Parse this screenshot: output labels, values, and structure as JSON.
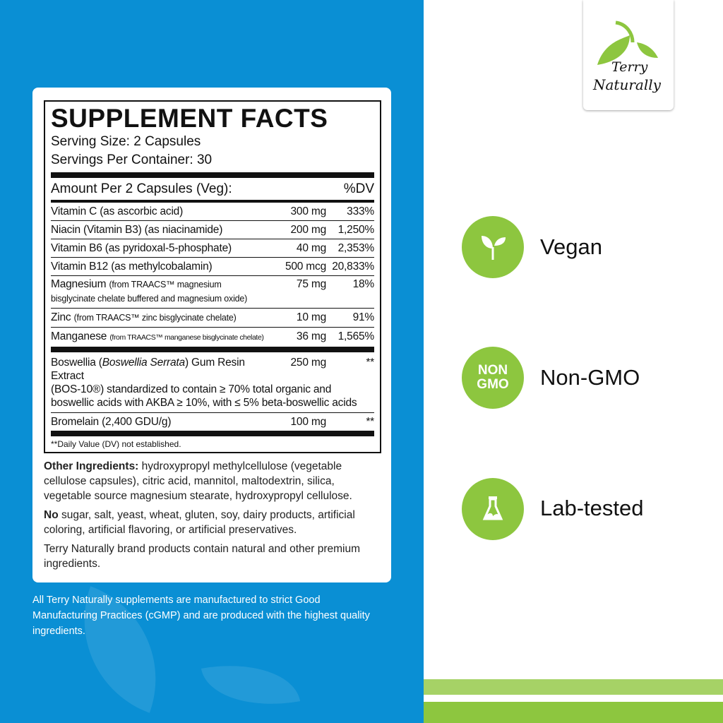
{
  "brand": {
    "name_line1": "Terry",
    "name_line2": "Naturally",
    "color_green": "#8dc63f",
    "color_blue": "#0a8fd4"
  },
  "facts": {
    "title": "SUPPLEMENT FACTS",
    "serving_size": "Serving Size: 2 Capsules",
    "servings_per_container": "Servings Per Container: 30",
    "amount_header": "Amount Per 2 Capsules (Veg):",
    "dv_header": "%DV",
    "rows": [
      {
        "name": "Vitamin C (as ascorbic acid)",
        "amount": "300 mg",
        "dv": "333%"
      },
      {
        "name": "Niacin (Vitamin B3) (as niacinamide)",
        "amount": "200 mg",
        "dv": "1,250%"
      },
      {
        "name": "Vitamin B6 (as pyridoxal-5-phosphate)",
        "amount": "40 mg",
        "dv": "2,353%"
      },
      {
        "name": "Vitamin B12 (as methylcobalamin)",
        "amount": "500 mcg",
        "dv": "20,833%"
      },
      {
        "name": "Magnesium",
        "detail": "(from TRAACS™ magnesium bisglycinate chelate buffered and magnesium oxide)",
        "amount": "75 mg",
        "dv": "18%"
      },
      {
        "name": "Zinc",
        "detail": "(from TRAACS™ zinc bisglycinate chelate)",
        "amount": "10 mg",
        "dv": "91%"
      },
      {
        "name": "Manganese",
        "detail": "(from TRAACS™ manganese bisglycinate chelate)",
        "amount": "36 mg",
        "dv": "1,565%"
      }
    ],
    "boswellia": {
      "name_pre": "Boswellia (",
      "name_italic": "Boswellia Serrata",
      "name_post": ") Gum Resin Extract",
      "detail": "(BOS-10®) standardized to contain ≥ 70% total organic and boswellic acids with AKBA ≥ 10%, with ≤ 5% beta-boswellic acids",
      "amount": "250 mg",
      "dv": "**"
    },
    "bromelain": {
      "name": "Bromelain (2,400 GDU/g)",
      "amount": "100 mg",
      "dv": "**"
    },
    "footnote": "**Daily Value (DV) not established."
  },
  "ingredients": {
    "other_label": "Other Ingredients:",
    "other_text": " hydroxypropyl methylcellulose (vegetable cellulose capsules), citric acid, mannitol, maltodextrin, silica, vegetable source magnesium stearate, hydroxypropyl cellulose.",
    "no_label": "No",
    "no_text": " sugar, salt, yeast, wheat, gluten, soy, dairy products, artificial coloring, artificial flavoring, or artificial preservatives.",
    "brand_note": "Terry Naturally brand products contain natural and other premium ingredients."
  },
  "cgmp": "All Terry Naturally supplements are manufactured to strict Good Manufacturing Practices (cGMP) and are produced with the highest quality ingredients.",
  "badges": [
    {
      "label": "Vegan",
      "icon": "sprout-icon"
    },
    {
      "label": "Non-GMO",
      "icon": "non-gmo-icon",
      "icon_text_1": "NON",
      "icon_text_2": "GMO"
    },
    {
      "label": "Lab-tested",
      "icon": "lab-flask-icon"
    }
  ]
}
